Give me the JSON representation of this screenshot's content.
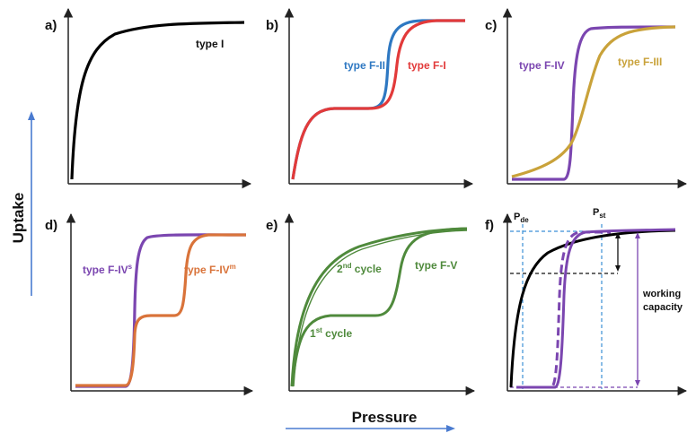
{
  "axes": {
    "y_title": "Uptake",
    "x_title": "Pressure",
    "arrow_color": "#4a7bd0"
  },
  "colors": {
    "black": "#000000",
    "red": "#e23a3a",
    "blue": "#2e78c2",
    "purple": "#7b46b0",
    "gold": "#c9a23a",
    "orange": "#d9733a",
    "green": "#4f8a3c",
    "dash_blue": "#3b8fd6"
  },
  "panels": {
    "a": {
      "label": "a)",
      "curves": {
        "type1": "type I"
      }
    },
    "b": {
      "label": "b)",
      "curves": {
        "f2": "type F-II",
        "f1": "type F-I"
      }
    },
    "c": {
      "label": "c)",
      "curves": {
        "f4": "type F-IV",
        "f3": "type F-III"
      }
    },
    "d": {
      "label": "d)",
      "curves": {
        "f4s_base": "type F-IV",
        "f4s_sup": "s",
        "f4m_base": "type F-IV",
        "f4m_sup": "m"
      }
    },
    "e": {
      "label": "e)",
      "curves": {
        "c2_num": "2",
        "c2_sup": "nd",
        "c2_text": " cycle",
        "c1_num": "1",
        "c1_sup": "st",
        "c1_text": " cycle",
        "f5": "type F-V"
      }
    },
    "f": {
      "label": "f)",
      "pde_main": "P",
      "pde_sub": "de",
      "pst_main": "P",
      "pst_sub": "st",
      "working_line1": "working",
      "working_line2": "capacity"
    }
  }
}
